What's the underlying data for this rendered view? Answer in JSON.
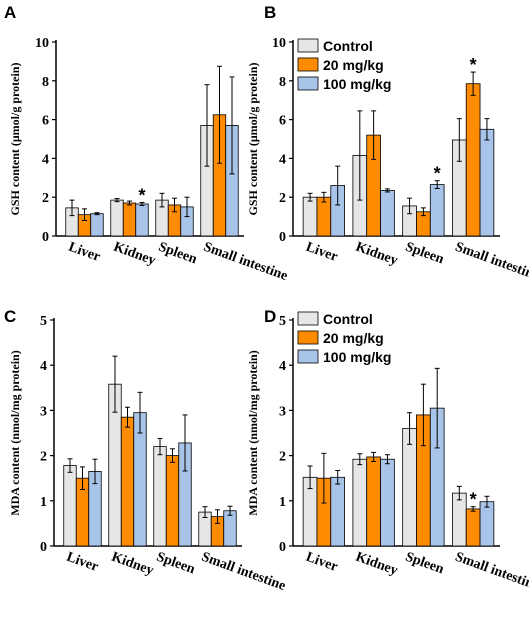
{
  "colors": {
    "control": "#e6e6e6",
    "mg20": "#ff8c00",
    "mg100": "#a8c4e8",
    "stroke": "#000000"
  },
  "chart_data": [
    {
      "panel": "A",
      "type": "bar",
      "ylabel": "GSH content (μmol/g protein)",
      "ylim": [
        0,
        10
      ],
      "yticks": [
        0,
        2,
        4,
        6,
        8,
        10
      ],
      "categories": [
        "Liver",
        "Kidney",
        "Spleen",
        "Small intestine"
      ],
      "legend": null,
      "series": [
        {
          "values": [
            1.45,
            1.85,
            1.85,
            5.7
          ],
          "errors": [
            0.4,
            0.08,
            0.35,
            2.1
          ]
        },
        {
          "values": [
            1.1,
            1.7,
            1.6,
            6.25
          ],
          "errors": [
            0.3,
            0.1,
            0.35,
            2.5
          ]
        },
        {
          "values": [
            1.15,
            1.65,
            1.5,
            5.7
          ],
          "errors": [
            0.05,
            0.08,
            0.5,
            2.5
          ]
        }
      ],
      "annotations": [
        {
          "category": 1,
          "series": 2,
          "text": "*"
        }
      ]
    },
    {
      "panel": "B",
      "type": "bar",
      "ylabel": "GSH content (μmol/g protein)",
      "ylim": [
        0,
        10
      ],
      "yticks": [
        0,
        2,
        4,
        6,
        8,
        10
      ],
      "categories": [
        "Liver",
        "Kidney",
        "Spleen",
        "Small intestine"
      ],
      "legend": [
        "Control",
        "20 mg/kg",
        "100 mg/kg"
      ],
      "series": [
        {
          "values": [
            2.0,
            4.15,
            1.55,
            4.95
          ],
          "errors": [
            0.2,
            2.3,
            0.4,
            1.1
          ]
        },
        {
          "values": [
            2.0,
            5.2,
            1.25,
            7.85
          ],
          "errors": [
            0.25,
            1.25,
            0.2,
            0.6
          ]
        },
        {
          "values": [
            2.6,
            2.35,
            2.65,
            5.5
          ],
          "errors": [
            1.0,
            0.08,
            0.2,
            0.55
          ]
        }
      ],
      "annotations": [
        {
          "category": 2,
          "series": 2,
          "text": "*"
        },
        {
          "category": 3,
          "series": 1,
          "text": "*"
        }
      ]
    },
    {
      "panel": "C",
      "type": "bar",
      "ylabel": "MDA content (nmol/mg protein)",
      "ylim": [
        0,
        5
      ],
      "yticks": [
        0,
        1,
        2,
        3,
        4,
        5
      ],
      "categories": [
        "Liver",
        "Kidney",
        "Spleen",
        "Small intestine"
      ],
      "legend": null,
      "series": [
        {
          "values": [
            1.78,
            3.58,
            2.2,
            0.75
          ],
          "errors": [
            0.15,
            0.62,
            0.18,
            0.12
          ]
        },
        {
          "values": [
            1.5,
            2.85,
            2.0,
            0.65
          ],
          "errors": [
            0.25,
            0.22,
            0.15,
            0.15
          ]
        },
        {
          "values": [
            1.65,
            2.95,
            2.28,
            0.78
          ],
          "errors": [
            0.27,
            0.45,
            0.62,
            0.1
          ]
        }
      ],
      "annotations": []
    },
    {
      "panel": "D",
      "type": "bar",
      "ylabel": "MDA content (nmol/mg protein)",
      "ylim": [
        0,
        5
      ],
      "yticks": [
        0,
        1,
        2,
        3,
        4,
        5
      ],
      "categories": [
        "Liver",
        "Kidney",
        "Spleen",
        "Small intestine"
      ],
      "legend": [
        "Control",
        "20 mg/kg",
        "100 mg/kg"
      ],
      "series": [
        {
          "values": [
            1.52,
            1.92,
            2.6,
            1.17
          ],
          "errors": [
            0.25,
            0.12,
            0.35,
            0.15
          ]
        },
        {
          "values": [
            1.5,
            1.97,
            2.9,
            0.82
          ],
          "errors": [
            0.55,
            0.1,
            0.68,
            0.05
          ]
        },
        {
          "values": [
            1.52,
            1.92,
            3.05,
            0.98
          ],
          "errors": [
            0.15,
            0.1,
            0.88,
            0.12
          ]
        }
      ],
      "annotations": [
        {
          "category": 3,
          "series": 1,
          "text": "*"
        }
      ]
    }
  ]
}
